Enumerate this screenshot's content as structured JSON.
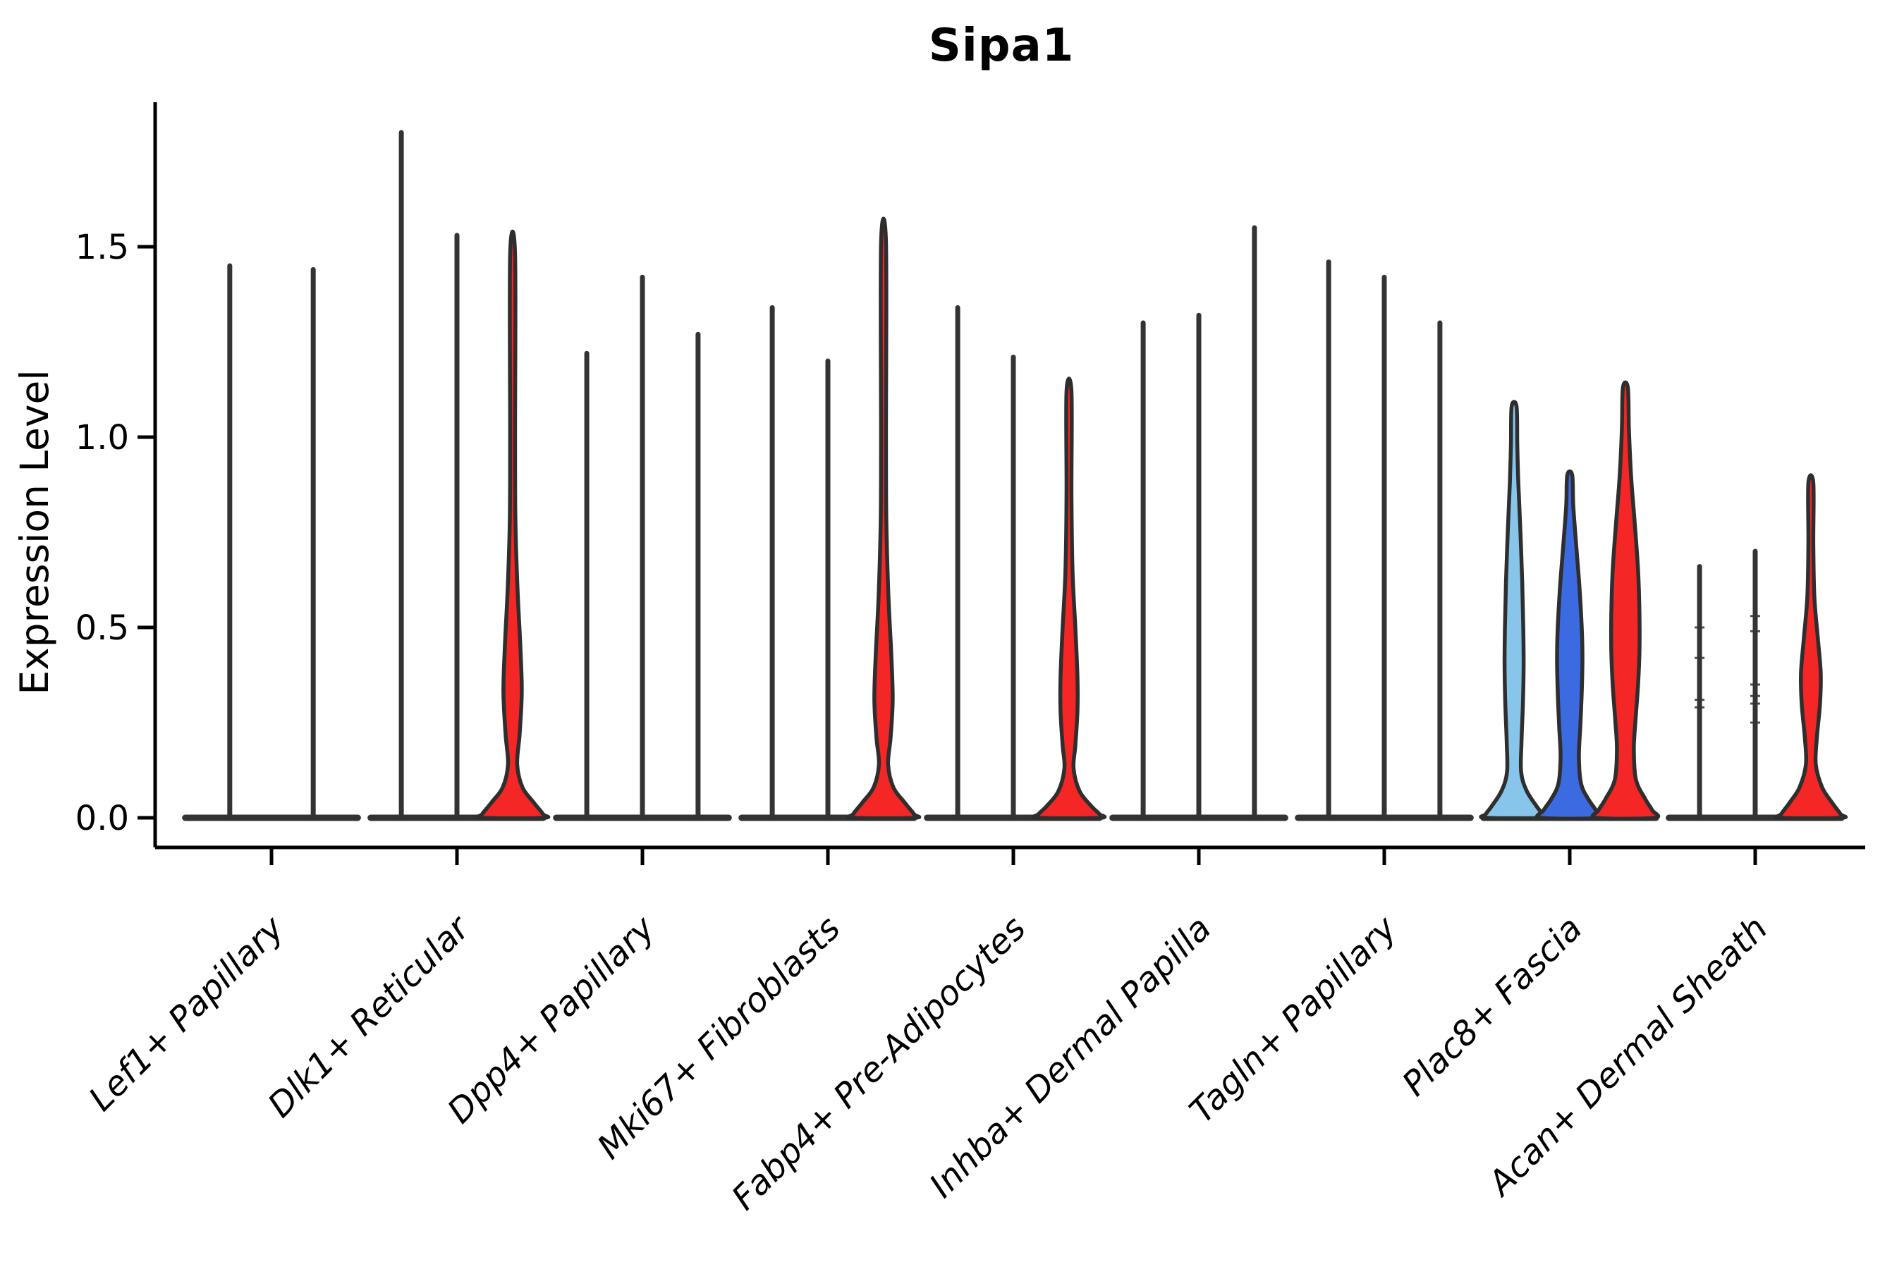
{
  "title": "Sipa1",
  "axes": {
    "ylabel": "Expression Level",
    "ytick_labels": [
      "0.0",
      "0.5",
      "1.0",
      "1.5"
    ]
  },
  "colors": {
    "red": "#f42626",
    "lightblue": "#87c6ea",
    "darkblue": "#3c6ae0",
    "outline": "#2e2e2e",
    "stick": "#333333",
    "axis": "#000000"
  },
  "chart_data": {
    "type": "violin",
    "title": "Sipa1",
    "xlabel": "",
    "ylabel": "Expression Level",
    "yticks": [
      0.0,
      0.5,
      1.0,
      1.5
    ],
    "ylim": [
      0,
      1.88
    ],
    "grid": false,
    "legend": "none",
    "categories": [
      "Lef1+ Papillary",
      "Dlk1+ Reticular",
      "Dpp4+ Papillary",
      "Mki67+ Fibroblasts",
      "Fabp4+ Pre-Adipocytes",
      "Inhba+ Dermal Papilla",
      "Tagln+ Papillary",
      "Plac8+ Fascia",
      "Acan+ Dermal Sheath"
    ],
    "groups": [
      {
        "category": "Lef1+ Papillary",
        "violins": [
          {
            "max": 1.45,
            "fill": null
          },
          {
            "max": 1.44,
            "fill": null
          }
        ]
      },
      {
        "category": "Dlk1+ Reticular",
        "violins": [
          {
            "max": 1.8,
            "fill": null
          },
          {
            "max": 1.53,
            "fill": null
          },
          {
            "max": 1.48,
            "fill": "red",
            "profile": [
              [
                1.48,
                3.5
              ],
              [
                1.0,
                3.5
              ],
              [
                0.78,
                4
              ],
              [
                0.6,
                7
              ],
              [
                0.45,
                11
              ],
              [
                0.33,
                13
              ],
              [
                0.22,
                10
              ],
              [
                0.14,
                6.5
              ],
              [
                0.08,
                14
              ],
              [
                0.04,
                30
              ],
              [
                0.01,
                43
              ],
              [
                0,
                44
              ]
            ]
          }
        ]
      },
      {
        "category": "Dpp4+ Papillary",
        "violins": [
          {
            "max": 1.22,
            "fill": null
          },
          {
            "max": 1.42,
            "fill": null
          },
          {
            "max": 1.27,
            "fill": null
          }
        ]
      },
      {
        "category": "Mki67+ Fibroblasts",
        "violins": [
          {
            "max": 1.34,
            "fill": null
          },
          {
            "max": 1.2,
            "fill": null
          },
          {
            "max": 1.51,
            "fill": "red",
            "profile": [
              [
                1.51,
                3.5
              ],
              [
                1.0,
                3.5
              ],
              [
                0.78,
                4
              ],
              [
                0.58,
                7
              ],
              [
                0.43,
                11
              ],
              [
                0.31,
                13
              ],
              [
                0.21,
                10
              ],
              [
                0.14,
                6.5
              ],
              [
                0.08,
                14
              ],
              [
                0.04,
                30
              ],
              [
                0.01,
                43
              ],
              [
                0,
                44
              ]
            ]
          }
        ]
      },
      {
        "category": "Fabp4+ Pre-Adipocytes",
        "violins": [
          {
            "max": 1.34,
            "fill": null
          },
          {
            "max": 1.21,
            "fill": null
          },
          {
            "max": 1.12,
            "fill": "red",
            "profile": [
              [
                1.12,
                3.5
              ],
              [
                0.85,
                3.5
              ],
              [
                0.65,
                5
              ],
              [
                0.5,
                9
              ],
              [
                0.37,
                12
              ],
              [
                0.28,
                12
              ],
              [
                0.19,
                9
              ],
              [
                0.13,
                6.5
              ],
              [
                0.07,
                15
              ],
              [
                0.03,
                32
              ],
              [
                0.01,
                43
              ],
              [
                0,
                44
              ]
            ]
          }
        ]
      },
      {
        "category": "Inhba+ Dermal Papilla",
        "violins": [
          {
            "max": 1.3,
            "fill": null
          },
          {
            "max": 1.32,
            "fill": null
          },
          {
            "max": 1.55,
            "fill": null
          }
        ]
      },
      {
        "category": "Tagln+ Papillary",
        "violins": [
          {
            "max": 1.46,
            "fill": null
          },
          {
            "max": 1.42,
            "fill": null
          },
          {
            "max": 1.3,
            "fill": null
          }
        ]
      },
      {
        "category": "Plac8+ Fascia",
        "violins": [
          {
            "max": 1.08,
            "fill": "lightblue",
            "profile": [
              [
                1.08,
                3.5
              ],
              [
                0.98,
                4.5
              ],
              [
                0.88,
                6
              ],
              [
                0.75,
                9
              ],
              [
                0.62,
                11.5
              ],
              [
                0.5,
                13
              ],
              [
                0.4,
                13.5
              ],
              [
                0.3,
                12.5
              ],
              [
                0.2,
                10.5
              ],
              [
                0.12,
                10
              ],
              [
                0.07,
                18
              ],
              [
                0.03,
                32
              ],
              [
                0.01,
                40
              ],
              [
                0,
                41
              ]
            ]
          },
          {
            "max": 0.9,
            "fill": "darkblue",
            "profile": [
              [
                0.9,
                3.5
              ],
              [
                0.82,
                5
              ],
              [
                0.72,
                9
              ],
              [
                0.6,
                14
              ],
              [
                0.5,
                17
              ],
              [
                0.42,
                18
              ],
              [
                0.33,
                17
              ],
              [
                0.24,
                15
              ],
              [
                0.16,
                13
              ],
              [
                0.09,
                16
              ],
              [
                0.05,
                26
              ],
              [
                0.02,
                37
              ],
              [
                0,
                41
              ]
            ]
          },
          {
            "max": 1.13,
            "fill": "red",
            "profile": [
              [
                1.13,
                3.5
              ],
              [
                1.02,
                5
              ],
              [
                0.9,
                8
              ],
              [
                0.78,
                13
              ],
              [
                0.65,
                18
              ],
              [
                0.53,
                20
              ],
              [
                0.44,
                20
              ],
              [
                0.35,
                18
              ],
              [
                0.26,
                14.5
              ],
              [
                0.18,
                12
              ],
              [
                0.1,
                15
              ],
              [
                0.05,
                28
              ],
              [
                0.02,
                38
              ],
              [
                0,
                41
              ]
            ]
          }
        ]
      },
      {
        "category": "Acan+ Dermal Sheath",
        "violins": [
          {
            "max": 0.66,
            "fill": null,
            "points": [
              0.5,
              0.42,
              0.31,
              0.29
            ]
          },
          {
            "max": 0.7,
            "fill": null,
            "points": [
              0.53,
              0.49,
              0.35,
              0.32,
              0.3,
              0.25
            ]
          },
          {
            "max": 0.88,
            "fill": "red",
            "profile": [
              [
                0.88,
                3.5
              ],
              [
                0.72,
                3.5
              ],
              [
                0.58,
                5
              ],
              [
                0.47,
                10
              ],
              [
                0.38,
                14
              ],
              [
                0.3,
                13
              ],
              [
                0.21,
                8.5
              ],
              [
                0.14,
                7
              ],
              [
                0.08,
                16
              ],
              [
                0.04,
                30
              ],
              [
                0.01,
                42
              ],
              [
                0,
                43
              ]
            ]
          }
        ]
      }
    ]
  }
}
